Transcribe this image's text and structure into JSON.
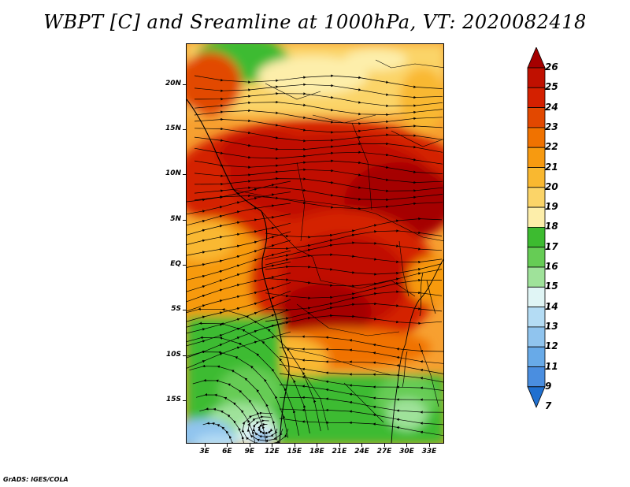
{
  "title": "WBPT [C] and Sreamline at 1000hPa, VT: 2020082418",
  "footer": "GrADS: IGES/COLA",
  "map": {
    "lat_labels": [
      "20N",
      "15N",
      "10N",
      "5N",
      "EQ",
      "5S",
      "10S",
      "15S"
    ],
    "lat_values": [
      20,
      15,
      10,
      5,
      0,
      -5,
      -10,
      -15
    ],
    "lon_labels": [
      "3E",
      "6E",
      "9E",
      "12E",
      "15E",
      "18E",
      "21E",
      "24E",
      "27E",
      "30E",
      "33E"
    ],
    "lon_values": [
      3,
      6,
      9,
      12,
      15,
      18,
      21,
      24,
      27,
      30,
      33
    ],
    "lon_range": [
      0.5,
      35
    ],
    "lat_range": [
      -19.8,
      24.5
    ]
  },
  "colorbar": {
    "labels": [
      "26",
      "25",
      "24",
      "23",
      "22",
      "21",
      "20",
      "19",
      "18",
      "17",
      "16",
      "15",
      "14",
      "13",
      "12",
      "11",
      "9",
      "7"
    ],
    "colors": [
      "#a50000",
      "#c01000",
      "#d42000",
      "#e24800",
      "#f07200",
      "#f79a10",
      "#f9b830",
      "#fbd468",
      "#fdeeaa",
      "#3dbb30",
      "#66cc55",
      "#9fe29a",
      "#e0f5f5",
      "#b4dcf4",
      "#90c4ee",
      "#68aae8",
      "#4a8ee0",
      "#2070d0"
    ]
  },
  "colors": {
    "hot": "#a50000",
    "warm": "#e24800",
    "mild": "#fbd468",
    "green": "#3dbb30",
    "cold": "#68aae8"
  }
}
